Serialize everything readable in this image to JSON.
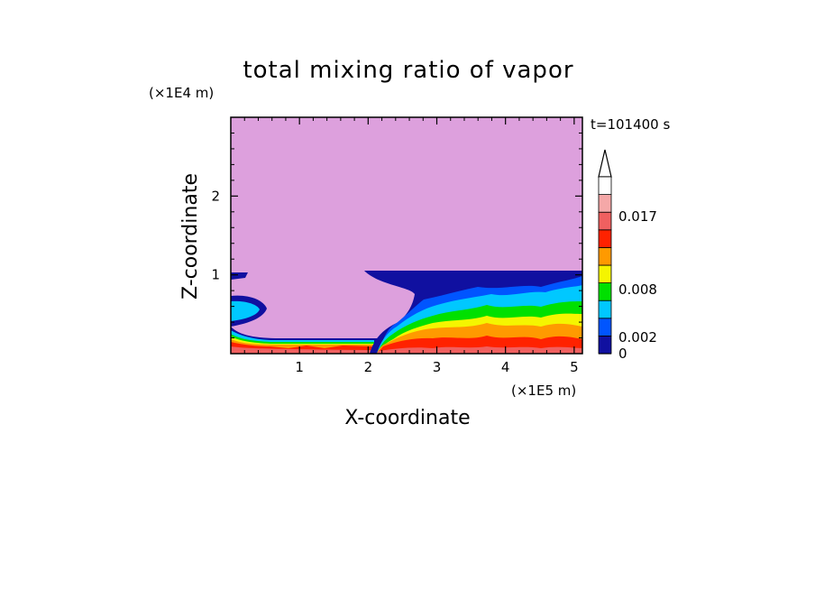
{
  "chart_data": {
    "type": "heatmap",
    "title": "total mixing ratio of vapor",
    "xlabel": "X-coordinate",
    "ylabel": "Z-coordinate",
    "x_unit": "(×1E5 m)",
    "y_unit": "(×1E4 m)",
    "time_label": "t=101400 s",
    "xlim": [
      0,
      5.12
    ],
    "ylim": [
      0,
      3.0
    ],
    "x_ticks": [
      1,
      2,
      3,
      4,
      5
    ],
    "y_ticks": [
      1,
      2
    ],
    "colorbar": {
      "labels": [
        {
          "text": "0.017",
          "value": 0.017
        },
        {
          "text": "0.008",
          "value": 0.008
        },
        {
          "text": "0.002",
          "value": 0.002
        },
        {
          "text": "0",
          "value": 0
        }
      ],
      "colors": [
        "#1010a0",
        "#0055ff",
        "#00c8ff",
        "#00e000",
        "#f5f500",
        "#ff9a00",
        "#ff2200",
        "#f06060",
        "#f5a8a8",
        "#ffffff"
      ]
    },
    "colors": {
      "background_field": "#dda0dd",
      "dark_blue": "#1010a0",
      "blue": "#0055ff",
      "cyan": "#00c8ff",
      "green": "#00e000",
      "yellow": "#f5f500",
      "orange": "#ff9a00",
      "red": "#ff2200",
      "salmon": "#f06060",
      "pink": "#f5a8a8"
    }
  }
}
